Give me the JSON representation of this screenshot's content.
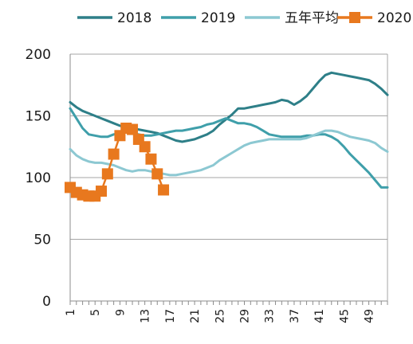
{
  "chart_data": {
    "type": "line",
    "title": "",
    "xlabel": "",
    "ylabel": "",
    "x_ticks": [
      "1",
      "5",
      "9",
      "13",
      "17",
      "21",
      "25",
      "29",
      "33",
      "37",
      "41",
      "45",
      "49"
    ],
    "xlim": [
      1,
      52
    ],
    "y_ticks": [
      "0",
      "50",
      "100",
      "150",
      "200"
    ],
    "ylim": [
      0,
      200
    ],
    "grid": "horizontal",
    "legend_position": "top",
    "series": [
      {
        "name": "2018",
        "color": "#2E7F88",
        "marker": "none",
        "x": [
          1,
          2,
          3,
          4,
          5,
          6,
          7,
          8,
          9,
          10,
          11,
          12,
          13,
          14,
          15,
          16,
          17,
          18,
          19,
          20,
          21,
          22,
          23,
          24,
          25,
          26,
          27,
          28,
          29,
          30,
          31,
          32,
          33,
          34,
          35,
          36,
          37,
          38,
          39,
          40,
          41,
          42,
          43,
          44,
          45,
          46,
          47,
          48,
          49,
          50,
          51,
          52
        ],
        "y": [
          161,
          157,
          154,
          152,
          150,
          148,
          146,
          144,
          142,
          141,
          140,
          139,
          138,
          137,
          136,
          134,
          132,
          130,
          129,
          130,
          131,
          133,
          135,
          138,
          143,
          147,
          151,
          156,
          156,
          157,
          158,
          159,
          160,
          161,
          163,
          162,
          159,
          162,
          166,
          172,
          178,
          183,
          185,
          184,
          183,
          182,
          181,
          180,
          179,
          176,
          172,
          167
        ]
      },
      {
        "name": "2019",
        "color": "#3F9FAA",
        "marker": "none",
        "x": [
          1,
          2,
          3,
          4,
          5,
          6,
          7,
          8,
          9,
          10,
          11,
          12,
          13,
          14,
          15,
          16,
          17,
          18,
          19,
          20,
          21,
          22,
          23,
          24,
          25,
          26,
          27,
          28,
          29,
          30,
          31,
          32,
          33,
          34,
          35,
          36,
          37,
          38,
          39,
          40,
          41,
          42,
          43,
          44,
          45,
          46,
          47,
          48,
          49,
          50,
          51,
          52
        ],
        "y": [
          156,
          148,
          140,
          135,
          134,
          133,
          133,
          135,
          136,
          137,
          136,
          135,
          134,
          134,
          135,
          136,
          137,
          138,
          138,
          139,
          140,
          141,
          143,
          144,
          146,
          148,
          146,
          144,
          144,
          143,
          141,
          138,
          135,
          134,
          133,
          133,
          133,
          133,
          134,
          134,
          135,
          135,
          133,
          130,
          125,
          119,
          114,
          109,
          104,
          98,
          92,
          92
        ]
      },
      {
        "name": "五年平均",
        "color": "#8CC8D2",
        "marker": "none",
        "x": [
          1,
          2,
          3,
          4,
          5,
          6,
          7,
          8,
          9,
          10,
          11,
          12,
          13,
          14,
          15,
          16,
          17,
          18,
          19,
          20,
          21,
          22,
          23,
          24,
          25,
          26,
          27,
          28,
          29,
          30,
          31,
          32,
          33,
          34,
          35,
          36,
          37,
          38,
          39,
          40,
          41,
          42,
          43,
          44,
          45,
          46,
          47,
          48,
          49,
          50,
          51,
          52
        ],
        "y": [
          123,
          118,
          115,
          113,
          112,
          112,
          111,
          110,
          108,
          106,
          105,
          106,
          106,
          105,
          104,
          103,
          102,
          102,
          103,
          104,
          105,
          106,
          108,
          110,
          114,
          117,
          120,
          123,
          126,
          128,
          129,
          130,
          131,
          131,
          131,
          131,
          131,
          131,
          132,
          134,
          136,
          138,
          138,
          137,
          135,
          133,
          132,
          131,
          130,
          128,
          124,
          121
        ]
      },
      {
        "name": "2020",
        "color": "#E8781E",
        "marker": "square",
        "x": [
          1,
          2,
          3,
          4,
          5,
          6,
          7,
          8,
          9,
          10,
          11,
          12,
          13,
          14,
          15,
          16
        ],
        "y": [
          92,
          88,
          86,
          85,
          85,
          89,
          103,
          119,
          134,
          140,
          139,
          131,
          125,
          115,
          103,
          90
        ]
      }
    ]
  }
}
